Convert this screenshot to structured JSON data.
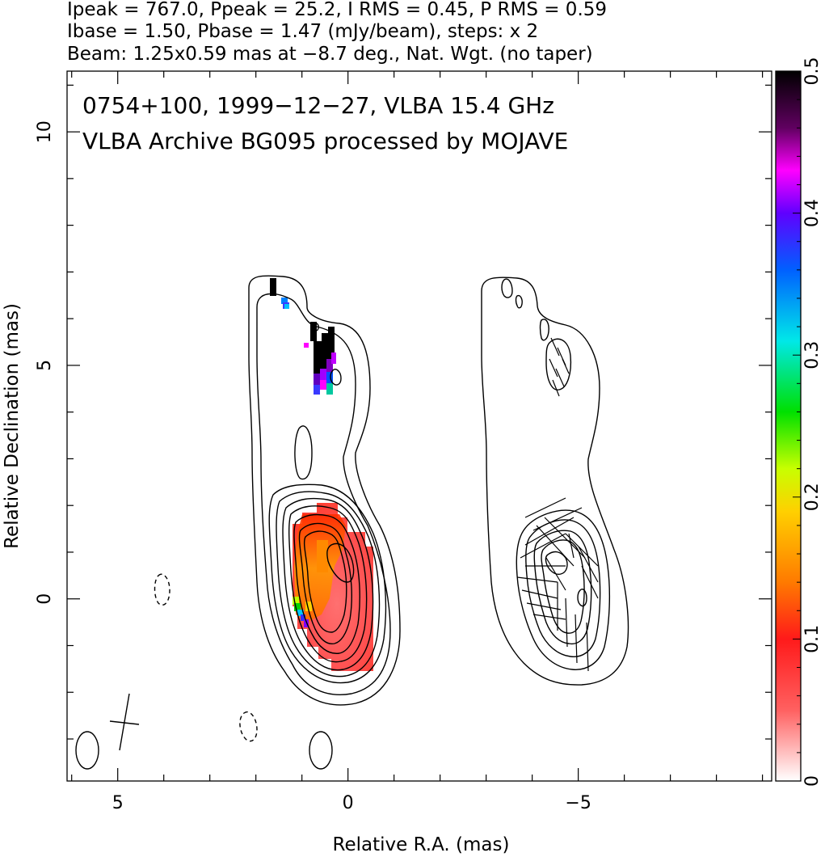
{
  "chart_data": {
    "type": "heatmap",
    "header": {
      "line1": "Ipeak = 767.0, Ppeak = 25.2, I RMS = 0.45, P RMS = 0.59",
      "line2": "Ibase = 1.50, Pbase = 1.47 (mJy/beam), steps: x 2",
      "line3": "Beam: 1.25x0.59 mas at −8.7 deg., Nat. Wgt. (no taper)"
    },
    "title": "0754+100, 1999−12−27, VLBA 15.4 GHz",
    "subtitle": "VLBA Archive BG095 processed by MOJAVE",
    "xlabel": "Relative R.A. (mas)",
    "ylabel": "Relative Declination (mas)",
    "xlim": [
      6.1,
      -9.2
    ],
    "ylim": [
      -3.9,
      11.3
    ],
    "x_ticks": [
      {
        "value": 5,
        "label": "5"
      },
      {
        "value": 0,
        "label": "0"
      },
      {
        "value": -5,
        "label": "−5"
      }
    ],
    "y_ticks": [
      {
        "value": 0,
        "label": "0"
      },
      {
        "value": 5,
        "label": "5"
      },
      {
        "value": 10,
        "label": "10"
      }
    ],
    "colorbar": {
      "range": [
        0,
        0.5
      ],
      "ticks": [
        {
          "value": 0,
          "label": "0"
        },
        {
          "value": 0.1,
          "label": "0.1"
        },
        {
          "value": 0.2,
          "label": "0.2"
        },
        {
          "value": 0.3,
          "label": "0.3"
        },
        {
          "value": 0.4,
          "label": "0.4"
        },
        {
          "value": 0.5,
          "label": "0.5"
        }
      ],
      "stops": [
        "#ffffff",
        "#ff3030",
        "#ffa500",
        "#ffff00",
        "#00e000",
        "#00e0e0",
        "#0000ff",
        "#ff00ff",
        "#000000"
      ]
    },
    "beam": {
      "major": 1.25,
      "minor": 0.59,
      "pa": -8.7
    },
    "panels": [
      {
        "name": "left",
        "x_offset": 0
      },
      {
        "name": "right",
        "x_offset": -5
      }
    ]
  }
}
